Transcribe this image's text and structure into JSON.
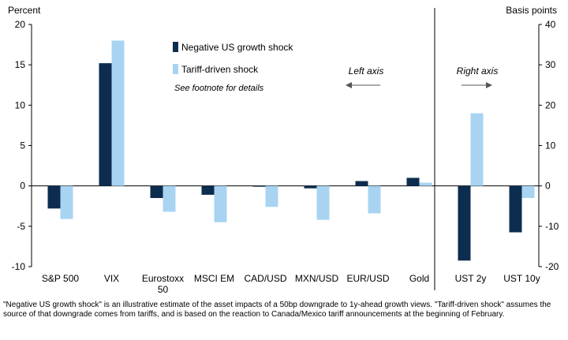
{
  "chart_data": {
    "type": "bar",
    "left_axis_label": "Percent",
    "right_axis_label": "Basis points",
    "left_ylim": [
      -10,
      20
    ],
    "left_ticks": [
      20,
      15,
      10,
      5,
      0,
      -5,
      -10
    ],
    "right_ylim": [
      -20,
      40
    ],
    "right_ticks": [
      40,
      30,
      20,
      10,
      0,
      -10,
      -20
    ],
    "categories": [
      "S&P 500",
      "VIX",
      "Eurostoxx\n50",
      "MSCI EM",
      "CAD/USD",
      "MXN/USD",
      "EUR/USD",
      "Gold",
      "UST 2y",
      "UST 10y"
    ],
    "axis_side": [
      "left",
      "left",
      "left",
      "left",
      "left",
      "left",
      "left",
      "left",
      "right",
      "right"
    ],
    "series": [
      {
        "name": "Negative US growth shock",
        "color": "#0d2d4f",
        "values": [
          -2.8,
          15.2,
          -1.5,
          -1.1,
          -0.1,
          -0.3,
          0.6,
          1.0,
          -18.5,
          -11.5
        ]
      },
      {
        "name": "Tariff-driven shock",
        "color": "#a8d4f2",
        "values": [
          -4.1,
          18.0,
          -3.2,
          -4.5,
          -2.6,
          -4.2,
          -3.4,
          0.4,
          18.0,
          -3.0
        ]
      }
    ],
    "annotations": {
      "footnote_ref": "See footnote for details",
      "left_axis_note": "Left axis",
      "right_axis_note": "Right axis"
    },
    "grid": false,
    "legend_position": "top-center"
  },
  "footnote": "\"Negative US growth shock\" is an illustrative estimate of the asset impacts of a 50bp downgrade to 1y-ahead growth views. \"Tariff-driven shock\" assumes the source of that downgrade comes from tariffs, and is based on the reaction to Canada/Mexico tariff announcements at the beginning of February."
}
